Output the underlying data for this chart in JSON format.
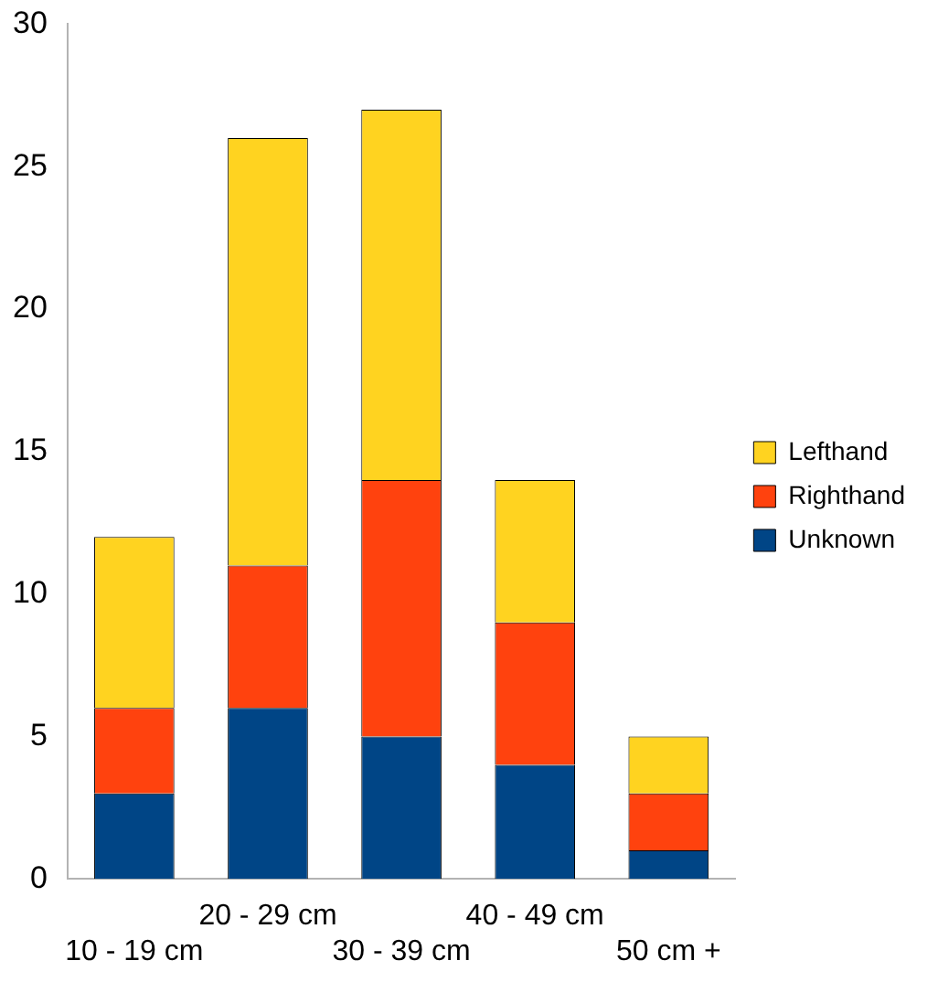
{
  "chart_data": {
    "type": "bar",
    "stacked": true,
    "categories": [
      "10 - 19 cm",
      "20 - 29 cm",
      "30 - 39 cm",
      "40 - 49 cm",
      "50 cm +"
    ],
    "series": [
      {
        "name": "Unknown",
        "color": "#004586",
        "values": [
          3,
          6,
          5,
          4,
          1
        ]
      },
      {
        "name": "Righthand",
        "color": "#ff420e",
        "values": [
          3,
          5,
          9,
          5,
          2
        ]
      },
      {
        "name": "Lefthand",
        "color": "#ffd320",
        "values": [
          6,
          15,
          13,
          5,
          2
        ]
      }
    ],
    "ylim": [
      0,
      30
    ],
    "yticks": [
      0,
      5,
      10,
      15,
      20,
      25,
      30
    ],
    "grid": false,
    "legend": "right"
  }
}
